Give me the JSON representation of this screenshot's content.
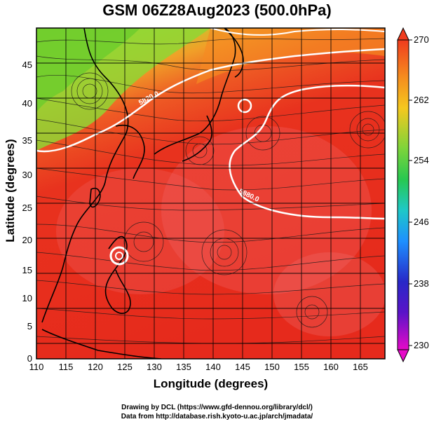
{
  "title": "GSM 06Z28Aug2023 (500.0hPa)",
  "xlabel": "Longitude (degrees)",
  "ylabel": "Latitude  (degrees)",
  "x_ticks": [
    "110",
    "115",
    "120",
    "125",
    "130",
    "135",
    "140",
    "145",
    "150",
    "155",
    "160",
    "165"
  ],
  "y_ticks": [
    "0",
    "5",
    "10",
    "15",
    "20",
    "25",
    "30",
    "35",
    "40",
    "45"
  ],
  "colorbar_ticks": [
    "270",
    "262",
    "254",
    "246",
    "238",
    "230"
  ],
  "contour_labels": [
    "5820.0",
    "5880.0"
  ],
  "credit_line1": "Drawing by DCL (https://www.gfd-dennou.org/library/dcl/)",
  "credit_line2": "Data from http://database.rish.kyoto-u.ac.jp/arch/jmadata/",
  "colors": {
    "warm": "#e8281c",
    "mid": "#f5a020",
    "green": "#7ed43a",
    "colorbar": [
      "#e60ac8",
      "#2828c8",
      "#1e90ff",
      "#1ec8c8",
      "#28c850",
      "#7ed43a",
      "#f5c81e",
      "#f58c1e",
      "#f03c1e"
    ]
  }
}
